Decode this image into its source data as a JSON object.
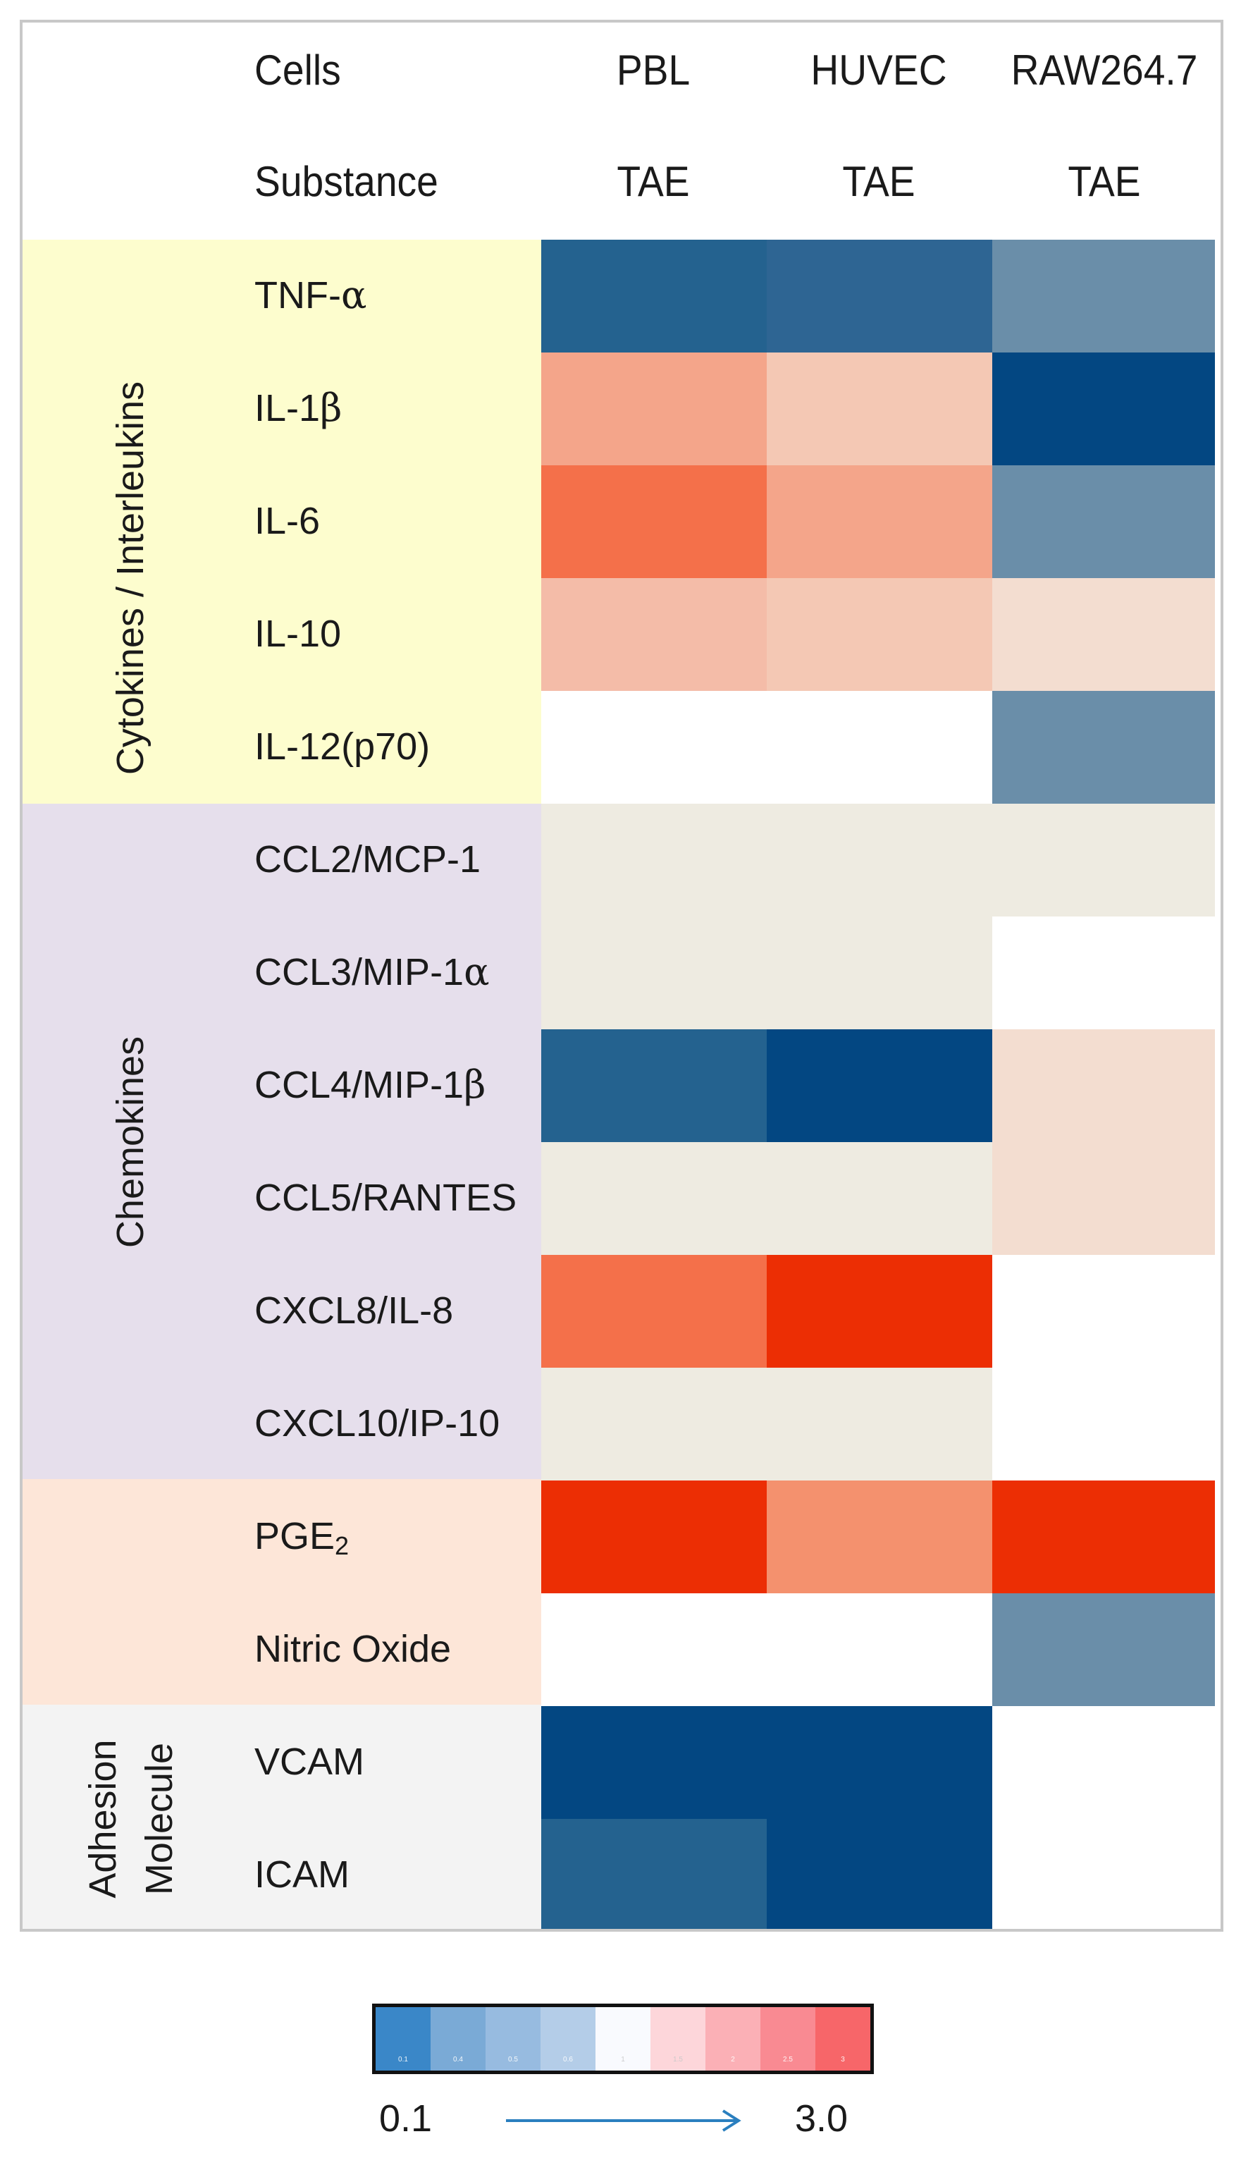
{
  "header": {
    "cells_label": "Cells",
    "substance_label": "Substance",
    "columns": [
      {
        "cell": "PBL",
        "substance": "TAE"
      },
      {
        "cell": "HUVEC",
        "substance": "TAE"
      },
      {
        "cell": "RAW264.7",
        "substance": "TAE"
      }
    ]
  },
  "groups": [
    {
      "label": "Cytokines / Interleukins",
      "color": "#fdfdce",
      "orientation": "vertical"
    },
    {
      "label": "Chemokines",
      "color": "#e6dfec",
      "orientation": "vertical"
    },
    {
      "label": "",
      "color": "#fde6d8",
      "orientation": "vertical"
    },
    {
      "label": "Adhesion Molecule",
      "label_lines": [
        "Adhesion",
        "Molecule"
      ],
      "color": "#f3f3f3",
      "orientation": "vertical"
    }
  ],
  "rows": [
    {
      "label": "TNF-α",
      "label_main": "TNF-",
      "label_greek": "α",
      "group": 0
    },
    {
      "label": "IL-1β",
      "label_main": "IL-1",
      "label_greek": "β",
      "group": 0
    },
    {
      "label": "IL-6",
      "group": 0
    },
    {
      "label": "IL-10",
      "group": 0
    },
    {
      "label": "IL-12(p70)",
      "group": 0
    },
    {
      "label": "CCL2/MCP-1",
      "group": 1
    },
    {
      "label": "CCL3/MIP-1α",
      "label_main": "CCL3/MIP-1",
      "label_greek": "α",
      "group": 1
    },
    {
      "label": "CCL4/MIP-1β",
      "label_main": "CCL4/MIP-1",
      "label_greek": "β",
      "group": 1
    },
    {
      "label": "CCL5/RANTES",
      "group": 1
    },
    {
      "label": "CXCL8/IL-8",
      "group": 1
    },
    {
      "label": "CXCL10/IP-10",
      "group": 1
    },
    {
      "label": "PGE2",
      "label_main": "PGE",
      "label_sub": "2",
      "group": 2
    },
    {
      "label": "Nitric Oxide",
      "group": 2
    },
    {
      "label": "VCAM",
      "group": 3
    },
    {
      "label": "ICAM",
      "group": 3
    }
  ],
  "chart_data": {
    "type": "heatmap",
    "title": "",
    "xlabel": "Cells / Substance",
    "ylabel": "",
    "columns": [
      "PBL TAE",
      "HUVEC TAE",
      "RAW264.7 TAE"
    ],
    "rows": [
      "TNF-α",
      "IL-1β",
      "IL-6",
      "IL-10",
      "IL-12(p70)",
      "CCL2/MCP-1",
      "CCL3/MIP-1α",
      "CCL4/MIP-1β",
      "CCL5/RANTES",
      "CXCL8/IL-8",
      "CXCL10/IP-10",
      "PGE2",
      "Nitric Oxide",
      "VCAM",
      "ICAM"
    ],
    "colors": [
      [
        "#24628f",
        "#2e6593",
        "#6a8ea9"
      ],
      [
        "#f4a58a",
        "#f4c8b4",
        "#034782"
      ],
      [
        "#f4704a",
        "#f4a58a",
        "#6a8ea9"
      ],
      [
        "#f4bca8",
        "#f4c8b4",
        "#f3ddd0"
      ],
      [
        null,
        null,
        "#6a8ea9"
      ],
      [
        "#eeebe1",
        "#eeebe1",
        "#eeebe1"
      ],
      [
        "#eeebe1",
        "#eeebe1",
        null
      ],
      [
        "#24628f",
        "#034782",
        "#f3ddd0"
      ],
      [
        "#eeebe1",
        "#eeebe1",
        "#f3ddd0"
      ],
      [
        "#f4704a",
        "#ec2e04",
        null
      ],
      [
        "#eeebe1",
        "#eeebe1",
        null
      ],
      [
        "#ec2e04",
        "#f4916e",
        "#ec2e04"
      ],
      [
        null,
        null,
        "#6a8ea9"
      ],
      [
        "#034782",
        "#034782",
        null
      ],
      [
        "#24628f",
        "#034782",
        null
      ]
    ],
    "legend": {
      "min_label": "0.1",
      "max_label": "3.0",
      "swatches": [
        "#3a87c8",
        "#7aaad6",
        "#97bbe0",
        "#b4cde8",
        "#f9fafe",
        "#fdd6da",
        "#fbb0b6",
        "#f98a92",
        "#f76669"
      ],
      "swatch_ticks": [
        "0.1",
        "0.4",
        "0.5",
        "0.6",
        "1",
        "1.5",
        "2",
        "2.5",
        "3"
      ]
    }
  }
}
